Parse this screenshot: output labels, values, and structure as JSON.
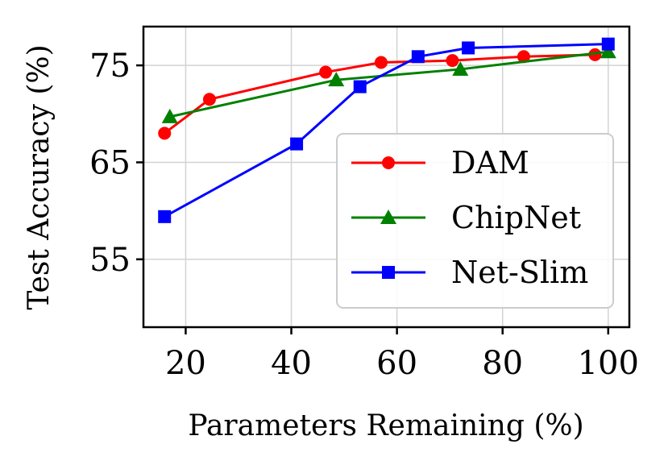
{
  "chart_data": {
    "type": "line",
    "xlabel": "Parameters Remaining (%)",
    "ylabel": "Test Accuracy (%)",
    "xlim": [
      12,
      104
    ],
    "ylim": [
      48,
      79
    ],
    "xticks": [
      20,
      40,
      60,
      80,
      100
    ],
    "yticks": [
      55,
      65,
      75
    ],
    "grid": true,
    "legend_position": "lower-right",
    "series": [
      {
        "name": "DAM",
        "color": "#ff0000",
        "marker": "circle",
        "x": [
          16,
          24.5,
          46.5,
          57,
          70.5,
          84,
          97.5
        ],
        "y": [
          68,
          71.5,
          74.3,
          75.3,
          75.5,
          75.9,
          76.1
        ]
      },
      {
        "name": "ChipNet",
        "color": "#008000",
        "marker": "triangle",
        "x": [
          17,
          48.5,
          72,
          100
        ],
        "y": [
          69.7,
          73.5,
          74.6,
          76.4
        ]
      },
      {
        "name": "Net-Slim",
        "color": "#0000ff",
        "marker": "square",
        "x": [
          16,
          41,
          53,
          64,
          73.5,
          100
        ],
        "y": [
          59.4,
          66.9,
          72.8,
          75.9,
          76.8,
          77.2
        ]
      }
    ]
  }
}
